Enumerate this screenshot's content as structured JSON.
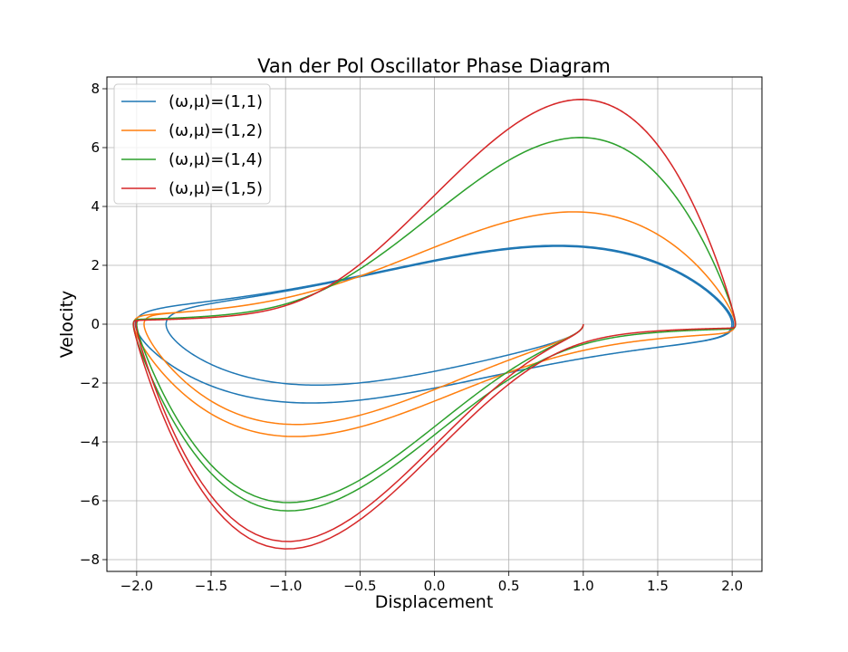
{
  "chart_data": {
    "type": "line",
    "title": "Van der Pol Oscillator Phase Diagram",
    "xlabel": "Displacement",
    "ylabel": "Velocity",
    "xlim": [
      -2.2,
      2.2
    ],
    "ylim": [
      -8.4,
      8.4
    ],
    "xticks": [
      -2.0,
      -1.5,
      -1.0,
      -0.5,
      0.0,
      0.5,
      1.0,
      1.5,
      2.0
    ],
    "xtick_labels": [
      "−2.0",
      "−1.5",
      "−1.0",
      "−0.5",
      "0.0",
      "0.5",
      "1.0",
      "1.5",
      "2.0"
    ],
    "yticks": [
      -8,
      -6,
      -4,
      -2,
      0,
      2,
      4,
      6,
      8
    ],
    "ytick_labels": [
      "−8",
      "−6",
      "−4",
      "−2",
      "0",
      "2",
      "4",
      "6",
      "8"
    ],
    "grid": true,
    "legend_position": "upper-left",
    "series": [
      {
        "name": "(ω,μ)=(1,1)",
        "omega": 1,
        "mu": 1,
        "initial_state": [
          1,
          0
        ],
        "color": "#1f77b4"
      },
      {
        "name": "(ω,μ)=(1,2)",
        "omega": 1,
        "mu": 2,
        "initial_state": [
          1,
          0
        ],
        "color": "#ff7f0e"
      },
      {
        "name": "(ω,μ)=(1,4)",
        "omega": 1,
        "mu": 4,
        "initial_state": [
          1,
          0
        ],
        "color": "#2ca02c"
      },
      {
        "name": "(ω,μ)=(1,5)",
        "omega": 1,
        "mu": 5,
        "initial_state": [
          1,
          0
        ],
        "color": "#d62728"
      }
    ]
  }
}
